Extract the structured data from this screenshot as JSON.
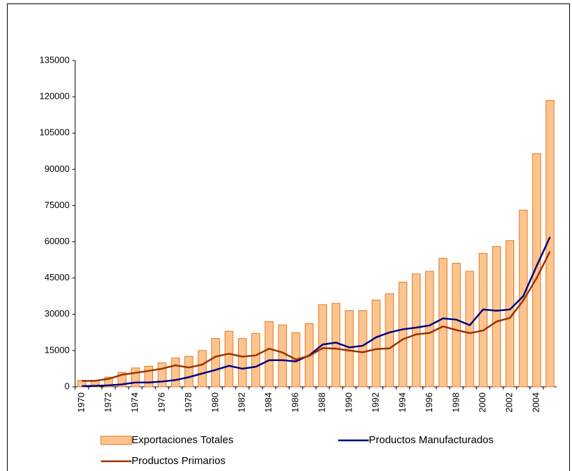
{
  "chart_data": {
    "type": "bar_line",
    "categories": [
      "1970",
      null,
      "1972",
      null,
      "1974",
      null,
      "1976",
      null,
      "1978",
      null,
      "1980",
      null,
      "1982",
      null,
      "1984",
      null,
      "1986",
      null,
      "1988",
      null,
      "1990",
      null,
      "1992",
      null,
      "1994",
      null,
      "1996",
      null,
      "1998",
      null,
      "2000",
      null,
      "2002",
      null,
      "2004",
      null
    ],
    "series": [
      {
        "name": "Exportaciones Totales",
        "type": "bar",
        "color": "#fdc48f",
        "edge_color": "#e07a1e",
        "values": [
          2700,
          2700,
          4000,
          6000,
          7800,
          8500,
          9900,
          11900,
          12600,
          15000,
          20000,
          23000,
          20000,
          22100,
          27000,
          25600,
          22400,
          26200,
          34000,
          34500,
          31500,
          31500,
          35900,
          38500,
          43300,
          46700,
          47800,
          53200,
          51100,
          47800,
          55200,
          58000,
          60500,
          73100,
          96500,
          118500
        ]
      },
      {
        "name": "Productos Manufacturados",
        "type": "line",
        "color": "#000080",
        "values": [
          300,
          400,
          600,
          1000,
          1800,
          1800,
          2200,
          2800,
          4000,
          5500,
          7000,
          8700,
          7500,
          8300,
          11000,
          11000,
          10500,
          13000,
          17500,
          18300,
          16300,
          17000,
          20500,
          22500,
          23800,
          24500,
          25400,
          28300,
          27800,
          25500,
          32000,
          31500,
          32000,
          37500,
          50000,
          62000
        ]
      },
      {
        "name": "Productos Primarios",
        "type": "line",
        "color": "#993300",
        "values": [
          2400,
          2500,
          3300,
          5000,
          5800,
          6600,
          7500,
          8900,
          8000,
          9200,
          12500,
          13700,
          12500,
          13000,
          15800,
          14200,
          11300,
          12800,
          16000,
          15800,
          15000,
          14300,
          15600,
          15900,
          19700,
          21700,
          22300,
          25000,
          23500,
          22200,
          23300,
          27000,
          28500,
          35700,
          45000,
          56000
        ]
      }
    ],
    "ylim": [
      0,
      135000
    ],
    "yticks": [
      0,
      15000,
      30000,
      45000,
      60000,
      75000,
      90000,
      105000,
      120000,
      135000
    ],
    "grid": false
  }
}
